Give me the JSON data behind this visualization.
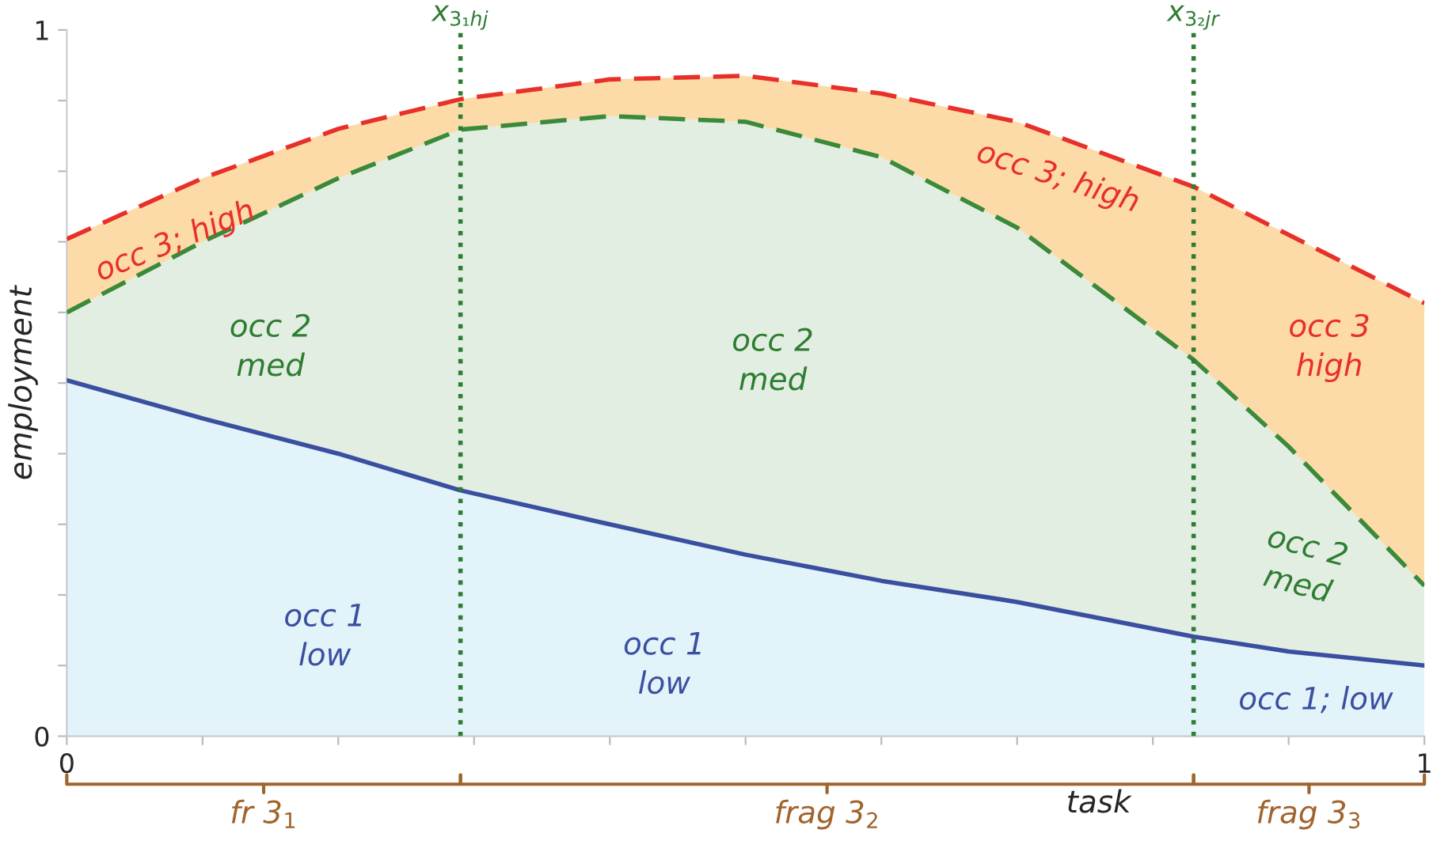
{
  "chart_data": {
    "type": "area",
    "xlabel": "task",
    "ylabel": "employment",
    "xlim": [
      0,
      1
    ],
    "ylim": [
      0,
      1
    ],
    "xticks": [
      0,
      {
        "value": 0.1,
        "label": null
      },
      {
        "value": 0.2,
        "label": null
      },
      {
        "value": 0.3,
        "label": null
      },
      {
        "value": 0.4,
        "label": null
      },
      {
        "value": 0.5,
        "label": null
      },
      {
        "value": 0.6,
        "label": null
      },
      {
        "value": 0.7,
        "label": null
      },
      {
        "value": 0.8,
        "label": null
      },
      {
        "value": 0.9,
        "label": null
      },
      1
    ],
    "yticks": [
      0,
      {
        "value": 0.1,
        "label": null
      },
      {
        "value": 0.2,
        "label": null
      },
      {
        "value": 0.3,
        "label": null
      },
      {
        "value": 0.4,
        "label": null
      },
      {
        "value": 0.5,
        "label": null
      },
      {
        "value": 0.6,
        "label": null
      },
      {
        "value": 0.7,
        "label": null
      },
      {
        "value": 0.8,
        "label": null
      },
      {
        "value": 0.9,
        "label": null
      },
      1
    ],
    "grid": false,
    "legend": false,
    "x": [
      0,
      0.1,
      0.2,
      0.29,
      0.4,
      0.5,
      0.6,
      0.7,
      0.83,
      0.9,
      1
    ],
    "series": [
      {
        "color": "#e8302a",
        "line_style": "dashed",
        "values": [
          0.704,
          0.79,
          0.86,
          0.902,
          0.93,
          0.935,
          0.91,
          0.87,
          0.778,
          0.71,
          0.613
        ]
      },
      {
        "color": "#3a8a3a",
        "line_style": "dashed",
        "values": [
          0.6,
          0.7,
          0.79,
          0.859,
          0.878,
          0.87,
          0.82,
          0.72,
          0.533,
          0.41,
          0.213
        ]
      },
      {
        "color": "#3a4fa0",
        "line_style": "solid",
        "values": [
          0.504,
          0.45,
          0.4,
          0.348,
          0.3,
          0.257,
          0.22,
          0.19,
          0.141,
          0.12,
          0.1
        ]
      }
    ],
    "ref_lines": [
      {
        "axis": "x",
        "value": 0.29,
        "label": "x$_{3₁hj}$",
        "color": "#2e7d32",
        "line_style": "dotted"
      },
      {
        "axis": "x",
        "value": 0.83,
        "label": "x$_{3₂jr}$",
        "color": "#2e7d32",
        "line_style": "dotted"
      }
    ],
    "annotations": [
      "occ 3; high",
      "occ 3; high",
      "occ 3\nhigh",
      "occ 2\nmed",
      "occ 2\nmed",
      "occ 2\nmed",
      "occ 1\nlow",
      "occ 1\nlow",
      "occ 1; low",
      "fr 3$_{1}$",
      "frag 3$_{2}$",
      "frag 3$_{3}$"
    ]
  }
}
